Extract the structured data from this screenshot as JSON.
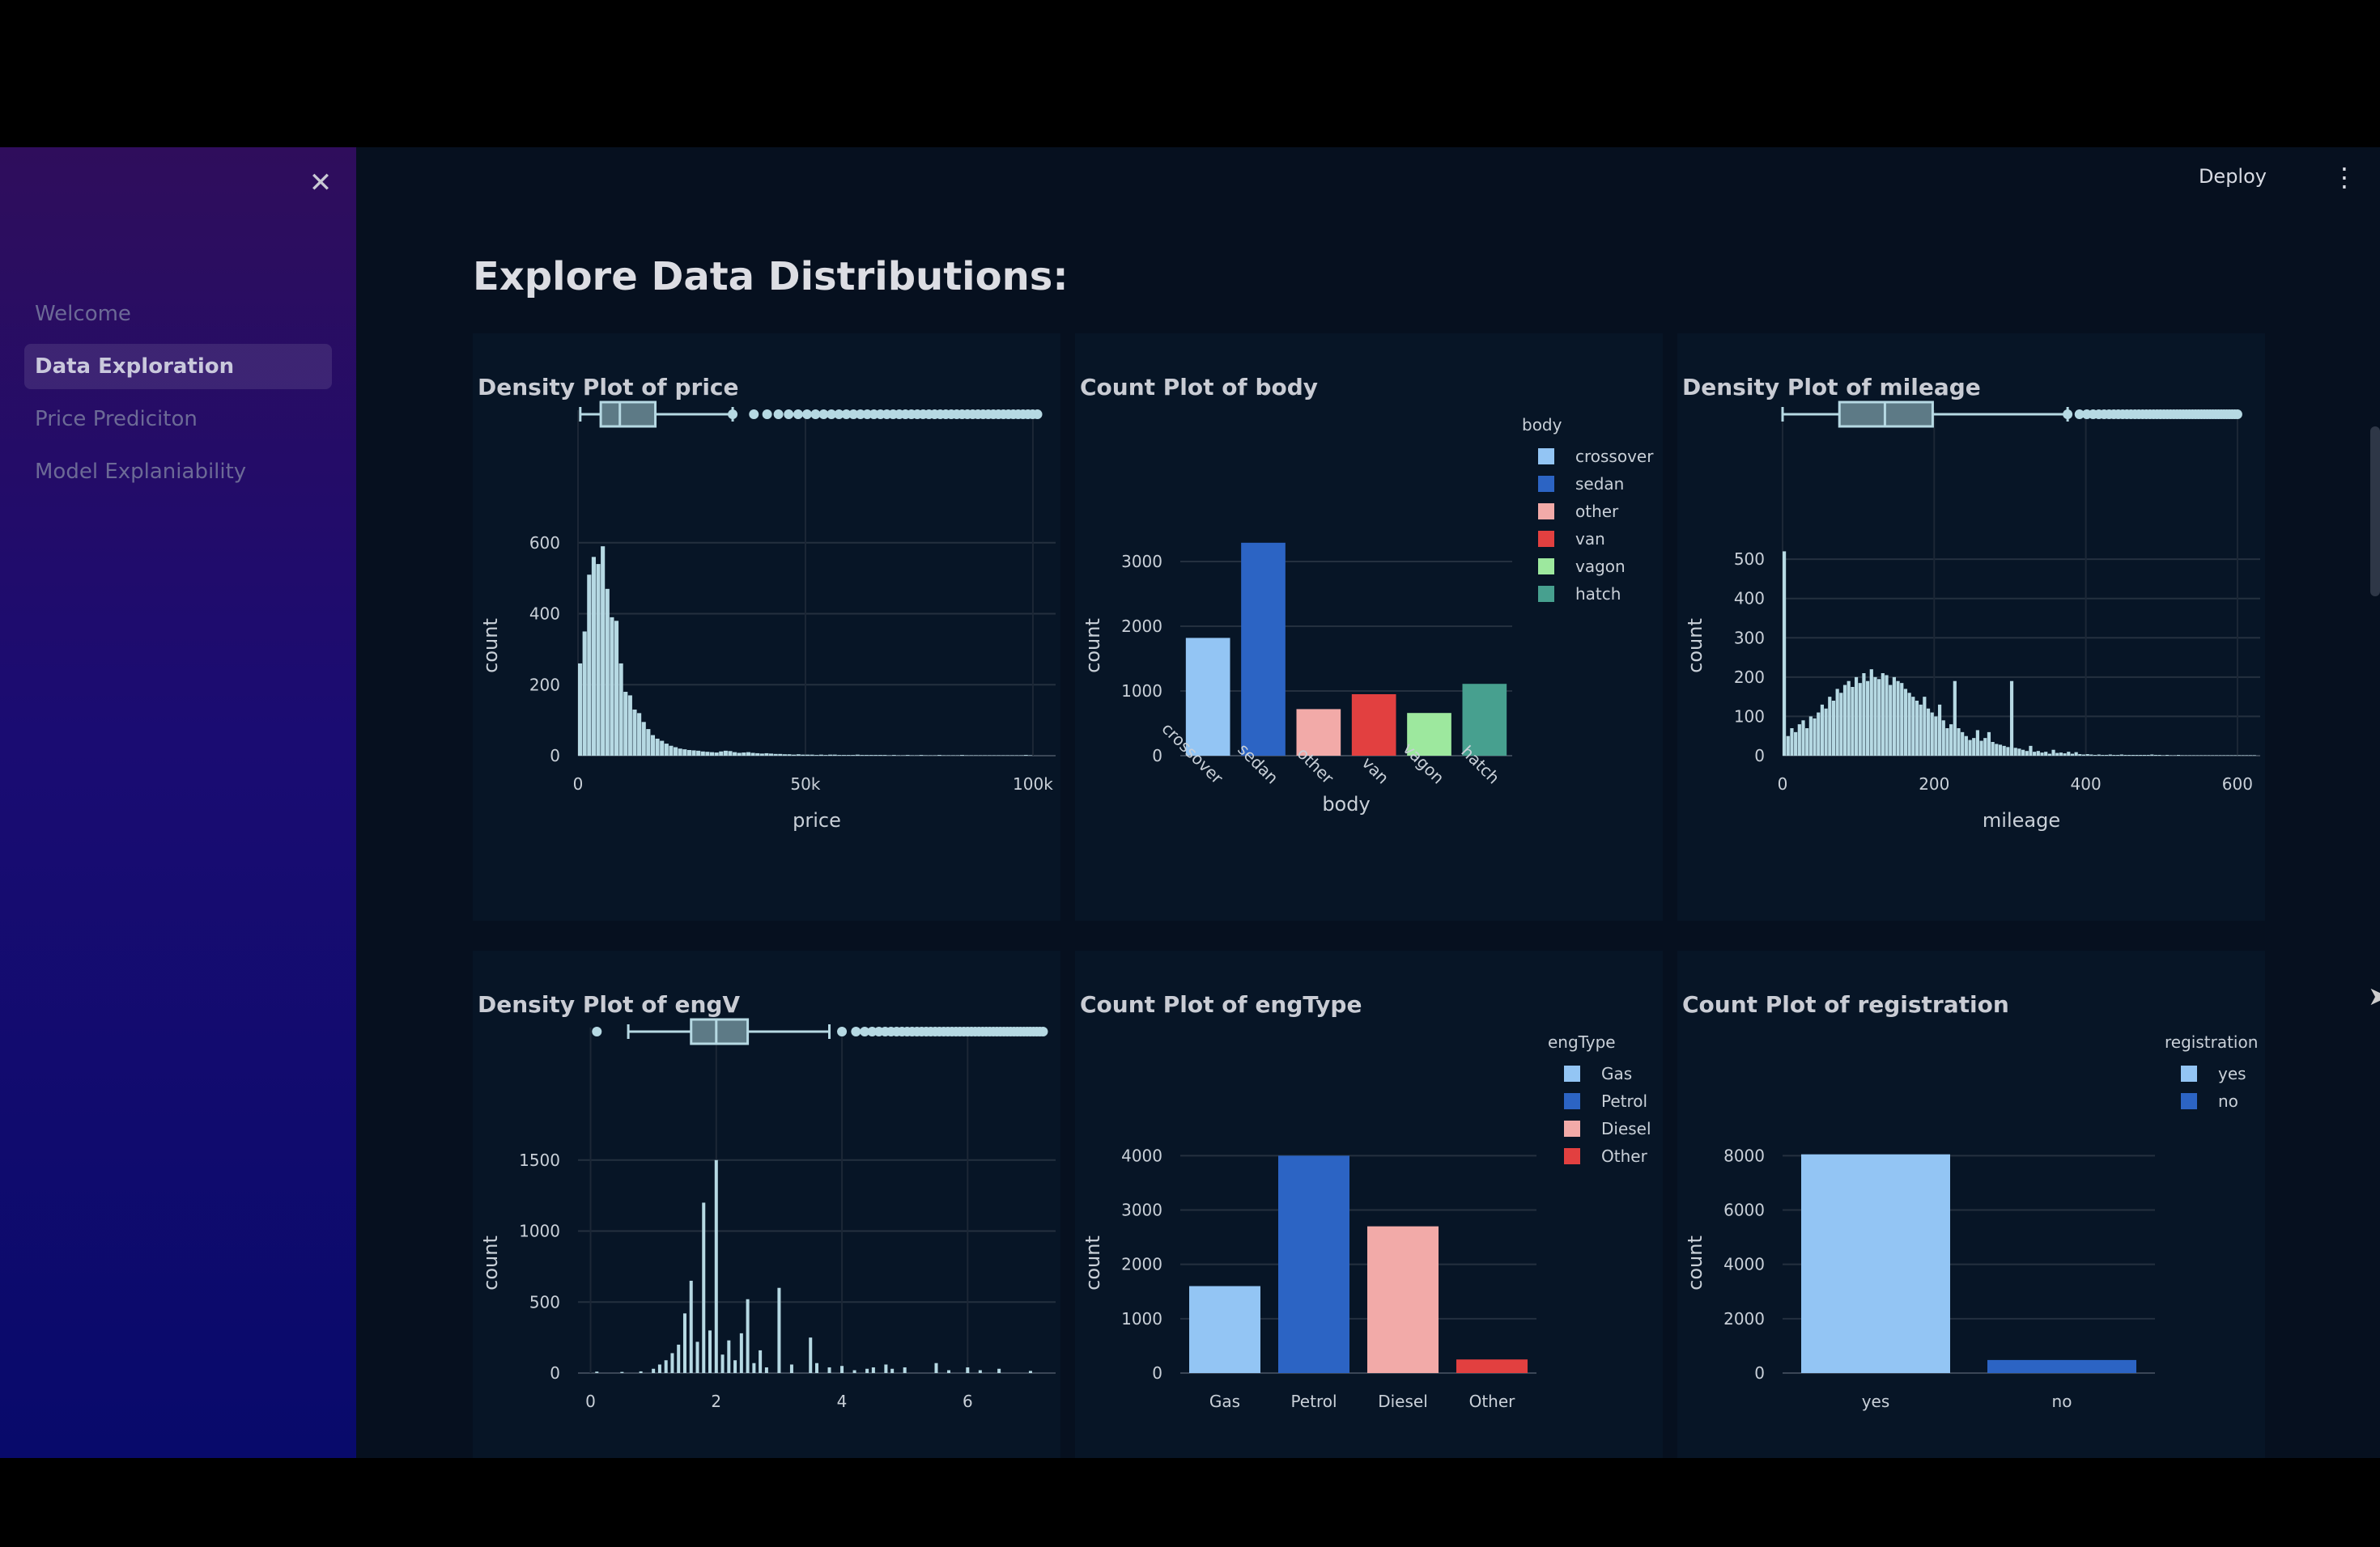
{
  "sidebar": {
    "close_icon": "close-icon",
    "items": [
      {
        "label": "Welcome",
        "active": false
      },
      {
        "label": "Data Exploration",
        "active": true
      },
      {
        "label": "Price Prediciton",
        "active": false
      },
      {
        "label": "Model Explaniability",
        "active": false
      }
    ]
  },
  "header": {
    "deploy_label": "Deploy",
    "menu_icon": "vertical-dots-icon"
  },
  "main": {
    "title": "Explore Data Distributions:"
  },
  "colors": {
    "bg": "#06101f",
    "bar_light": "#b6d9e3",
    "text": "#c9d0d8"
  },
  "chart_data": [
    {
      "type": "histogram",
      "title": "Density Plot of price",
      "xlabel": "price",
      "ylabel": "count",
      "xlim": [
        0,
        105000
      ],
      "ylim": [
        0,
        620
      ],
      "x_ticks": [
        0,
        50000,
        100000
      ],
      "x_tick_labels": [
        "0",
        "50k",
        "100k"
      ],
      "y_ticks": [
        0,
        200,
        400,
        600
      ],
      "bin_width": 1000,
      "values": [
        260,
        350,
        510,
        560,
        540,
        590,
        470,
        390,
        380,
        260,
        180,
        170,
        130,
        120,
        95,
        75,
        58,
        48,
        42,
        34,
        28,
        24,
        20,
        18,
        16,
        15,
        14,
        12,
        11,
        10,
        9,
        12,
        14,
        13,
        10,
        8,
        9,
        10,
        8,
        7,
        6,
        7,
        6,
        5,
        5,
        4,
        4,
        3,
        4,
        3,
        3,
        3,
        2,
        3,
        2,
        3,
        3,
        2,
        2,
        2,
        2,
        3,
        2,
        2,
        2,
        2,
        2,
        2,
        1,
        2,
        1,
        1,
        2,
        1,
        1,
        2,
        1,
        1,
        1,
        2,
        1,
        1,
        1,
        1,
        2,
        1,
        1,
        1,
        1,
        1,
        1,
        1,
        1,
        1,
        1,
        1,
        1,
        1,
        2,
        1
      ],
      "boxplot": {
        "whisker_low": 500,
        "q1": 5000,
        "median": 9200,
        "q3": 17000,
        "whisker_high": 34000,
        "outliers_range": [
          34000,
          101000
        ]
      }
    },
    {
      "type": "bar",
      "title": "Count Plot of body",
      "xlabel": "body",
      "ylabel": "count",
      "ylim": [
        0,
        3400
      ],
      "y_ticks": [
        0,
        1000,
        2000,
        3000
      ],
      "categories": [
        "crossover",
        "sedan",
        "other",
        "van",
        "vagon",
        "hatch"
      ],
      "values": [
        1820,
        3290,
        720,
        950,
        660,
        1110
      ],
      "colors": [
        "#93c5f4",
        "#2c64c4",
        "#f2aaa8",
        "#e24040",
        "#9de89e",
        "#47a08f"
      ],
      "legend_title": "body",
      "legend": "right"
    },
    {
      "type": "histogram",
      "title": "Density Plot of mileage",
      "xlabel": "mileage",
      "ylabel": "count",
      "xlim": [
        0,
        630
      ],
      "ylim": [
        0,
        560
      ],
      "x_ticks": [
        0,
        200,
        400,
        600
      ],
      "y_ticks": [
        0,
        100,
        200,
        300,
        400,
        500
      ],
      "bin_width": 5,
      "values": [
        520,
        50,
        70,
        60,
        80,
        90,
        70,
        100,
        95,
        110,
        130,
        120,
        150,
        140,
        170,
        160,
        180,
        190,
        175,
        200,
        185,
        210,
        190,
        220,
        200,
        195,
        210,
        205,
        180,
        200,
        190,
        185,
        170,
        160,
        150,
        140,
        130,
        150,
        120,
        110,
        100,
        130,
        90,
        70,
        80,
        190,
        70,
        60,
        50,
        40,
        45,
        65,
        38,
        45,
        60,
        35,
        30,
        28,
        25,
        22,
        190,
        20,
        18,
        15,
        12,
        25,
        10,
        12,
        8,
        10,
        5,
        15,
        7,
        8,
        6,
        10,
        5,
        9,
        4,
        3,
        4,
        3,
        2,
        3,
        2,
        2,
        3,
        2,
        2,
        3,
        2,
        2,
        2,
        2,
        2,
        2,
        2,
        3,
        2,
        2,
        1,
        2,
        1,
        1,
        2,
        1,
        1,
        1,
        1,
        1,
        1,
        1,
        1,
        1,
        1,
        1,
        1,
        1,
        1,
        1,
        1,
        1,
        1,
        1,
        1
      ],
      "boxplot": {
        "whisker_low": 0,
        "q1": 75,
        "median": 135,
        "q3": 198,
        "whisker_high": 376,
        "outliers_range": [
          376,
          600
        ]
      }
    },
    {
      "type": "histogram",
      "title": "Density Plot of engV",
      "xlabel": "",
      "ylabel": "count",
      "xlim": [
        -0.2,
        7.4
      ],
      "ylim": [
        0,
        1550
      ],
      "x_ticks": [
        0,
        2,
        4,
        6
      ],
      "y_ticks": [
        0,
        500,
        1000,
        1500
      ],
      "bars": [
        [
          0.1,
          10
        ],
        [
          0.5,
          8
        ],
        [
          0.8,
          12
        ],
        [
          1.0,
          30
        ],
        [
          1.1,
          60
        ],
        [
          1.2,
          90
        ],
        [
          1.3,
          140
        ],
        [
          1.4,
          200
        ],
        [
          1.5,
          420
        ],
        [
          1.6,
          650
        ],
        [
          1.7,
          220
        ],
        [
          1.8,
          1200
        ],
        [
          1.9,
          300
        ],
        [
          2.0,
          1500
        ],
        [
          2.1,
          130
        ],
        [
          2.2,
          230
        ],
        [
          2.3,
          90
        ],
        [
          2.4,
          280
        ],
        [
          2.5,
          520
        ],
        [
          2.6,
          70
        ],
        [
          2.7,
          160
        ],
        [
          2.8,
          40
        ],
        [
          3.0,
          600
        ],
        [
          3.2,
          60
        ],
        [
          3.5,
          250
        ],
        [
          3.6,
          70
        ],
        [
          3.8,
          40
        ],
        [
          4.0,
          50
        ],
        [
          4.2,
          20
        ],
        [
          4.4,
          30
        ],
        [
          4.5,
          40
        ],
        [
          4.7,
          60
        ],
        [
          4.8,
          30
        ],
        [
          5.0,
          40
        ],
        [
          5.5,
          70
        ],
        [
          5.7,
          20
        ],
        [
          6.0,
          40
        ],
        [
          6.2,
          20
        ],
        [
          6.5,
          30
        ],
        [
          7.0,
          15
        ]
      ],
      "boxplot": {
        "whisker_low": 0.6,
        "q1": 1.6,
        "median": 2.0,
        "q3": 2.5,
        "whisker_high": 3.8,
        "outliers_range": [
          4.0,
          7.2
        ],
        "outlier_low": 0.1
      }
    },
    {
      "type": "bar",
      "title": "Count Plot of engType",
      "xlabel": "",
      "ylabel": "count",
      "ylim": [
        0,
        4050
      ],
      "y_ticks": [
        0,
        1000,
        2000,
        3000,
        4000
      ],
      "categories": [
        "Gas",
        "Petrol",
        "Diesel",
        "Other"
      ],
      "values": [
        1600,
        4000,
        2700,
        250
      ],
      "colors": [
        "#93c5f4",
        "#2c64c4",
        "#f2aaa8",
        "#e24040"
      ],
      "legend_title": "engType",
      "legend": "right"
    },
    {
      "type": "bar",
      "title": "Count Plot of registration",
      "xlabel": "",
      "ylabel": "count",
      "ylim": [
        0,
        8100
      ],
      "y_ticks": [
        0,
        2000,
        4000,
        6000,
        8000
      ],
      "categories": [
        "yes",
        "no"
      ],
      "values": [
        8050,
        480
      ],
      "colors": [
        "#93c5f4",
        "#2c64c4"
      ],
      "legend_title": "registration",
      "legend": "right"
    }
  ]
}
